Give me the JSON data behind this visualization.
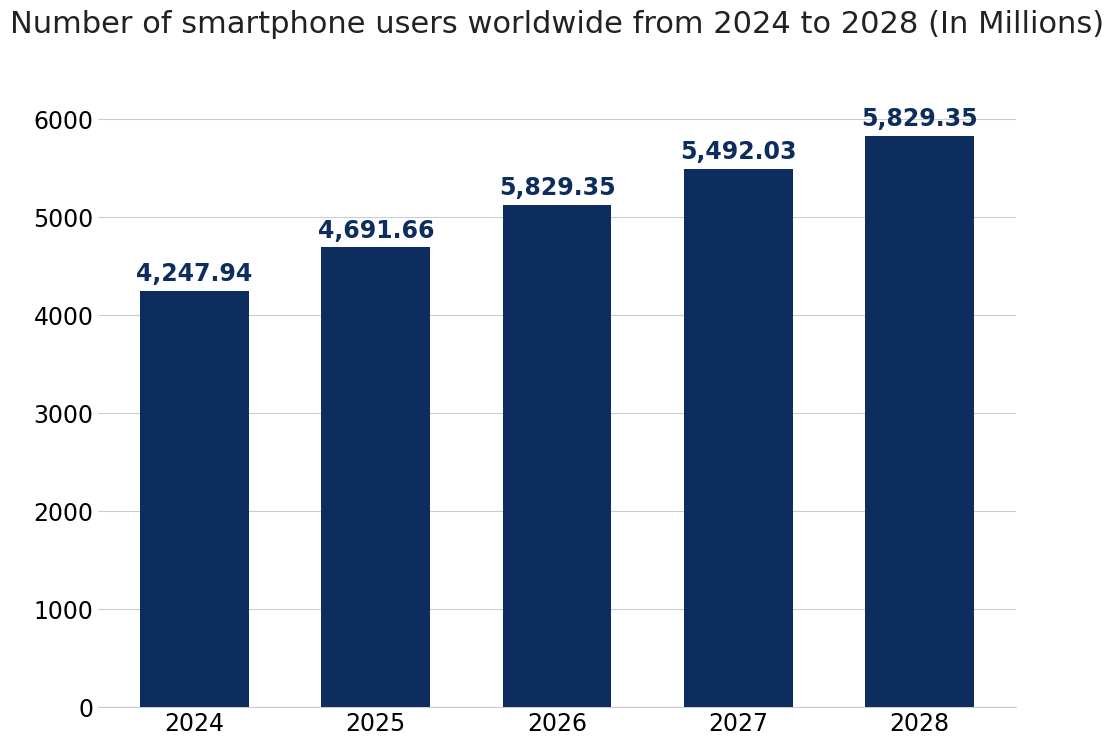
{
  "title": "Number of smartphone users worldwide from 2024 to 2028 (In Millions)",
  "categories": [
    "2024",
    "2025",
    "2026",
    "2027",
    "2028"
  ],
  "values": [
    4247.94,
    4691.66,
    5129.35,
    5492.03,
    5829.35
  ],
  "bar_color": "#0d2d5e",
  "label_color": "#0d2d5e",
  "background_color": "#ffffff",
  "ylim": [
    0,
    6600
  ],
  "yticks": [
    0,
    1000,
    2000,
    3000,
    4000,
    5000,
    6000
  ],
  "title_fontsize": 22,
  "tick_fontsize": 17,
  "label_fontsize": 17,
  "bar_width": 0.6
}
